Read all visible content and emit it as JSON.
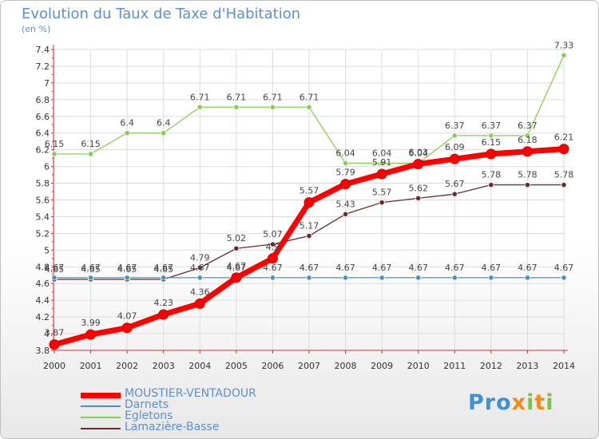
{
  "title": "Evolution du Taux de Taxe d'Habitation",
  "subtitle": "(en %)",
  "logo": "Proxiti",
  "colors": {
    "title": "#5b8fd6",
    "axis": "#cc3333",
    "grid": "#dddddd"
  },
  "chart_data": {
    "type": "line",
    "title": "Evolution du Taux de Taxe d'Habitation",
    "ylabel": "(en %)",
    "xlabel": "",
    "x": [
      "2000",
      "2001",
      "2002",
      "2003",
      "2004",
      "2005",
      "2006",
      "2007",
      "2008",
      "2009",
      "2010",
      "2011",
      "2012",
      "2013",
      "2014"
    ],
    "ylim": [
      3.8,
      7.4
    ],
    "yticks": [
      "3.8",
      "4",
      "4.2",
      "4.4",
      "4.6",
      "4.8",
      "5",
      "5.2",
      "5.4",
      "5.6",
      "5.8",
      "6",
      "6.2",
      "6.4",
      "6.6",
      "6.8",
      "7",
      "7.2",
      "7.4"
    ],
    "grid": true,
    "legend_position": "bottom-left",
    "series": [
      {
        "name": "MOUSTIER-VENTADOUR",
        "color": "#ff0000",
        "values": [
          3.87,
          3.99,
          4.07,
          4.23,
          4.36,
          4.67,
          4.9,
          5.57,
          5.79,
          5.91,
          6.03,
          6.09,
          6.15,
          6.18,
          6.21
        ],
        "labels": [
          "3.87",
          "3.99",
          "4.07",
          "4.23",
          "4.36",
          "4.67",
          "4.9",
          "5.57",
          "5.79",
          "5.91",
          "6.03",
          "6.09",
          "6.15",
          "6.18",
          "6.21"
        ]
      },
      {
        "name": "Darnets",
        "color": "#4a90c8",
        "values": [
          4.67,
          4.67,
          4.67,
          4.67,
          4.67,
          4.67,
          4.67,
          4.67,
          4.67,
          4.67,
          4.67,
          4.67,
          4.67,
          4.67,
          4.67
        ],
        "labels": [
          "4.67",
          "4.67",
          "4.67",
          "4.67",
          "4.67",
          "4.67",
          "4.67",
          "4.67",
          "4.67",
          "4.67",
          "4.67",
          "4.67",
          "4.67",
          "4.67",
          "4.67"
        ]
      },
      {
        "name": "Egletons",
        "color": "#88cc55",
        "values": [
          6.15,
          6.15,
          6.4,
          6.4,
          6.71,
          6.71,
          6.71,
          6.71,
          6.04,
          6.04,
          6.04,
          6.37,
          6.37,
          6.37,
          7.33
        ],
        "labels": [
          "6.15",
          "6.15",
          "6.4",
          "6.4",
          "6.71",
          "6.71",
          "6.71",
          "6.71",
          "6.04",
          "6.04",
          "6.04",
          "6.37",
          "6.37",
          "6.37",
          "7.33"
        ]
      },
      {
        "name": "Lamazière-Basse",
        "color": "#6b2a2a",
        "values": [
          4.65,
          4.65,
          4.65,
          4.65,
          4.79,
          5.02,
          5.07,
          5.17,
          5.43,
          5.57,
          5.62,
          5.67,
          5.78,
          5.78,
          5.78
        ],
        "labels": [
          "4.65",
          "4.65",
          "4.65",
          "4.65",
          "4.79",
          "5.02",
          "5.07",
          "5.17",
          "5.43",
          "5.57",
          "5.62",
          "5.67",
          "5.78",
          "5.78",
          "5.78"
        ]
      }
    ]
  }
}
